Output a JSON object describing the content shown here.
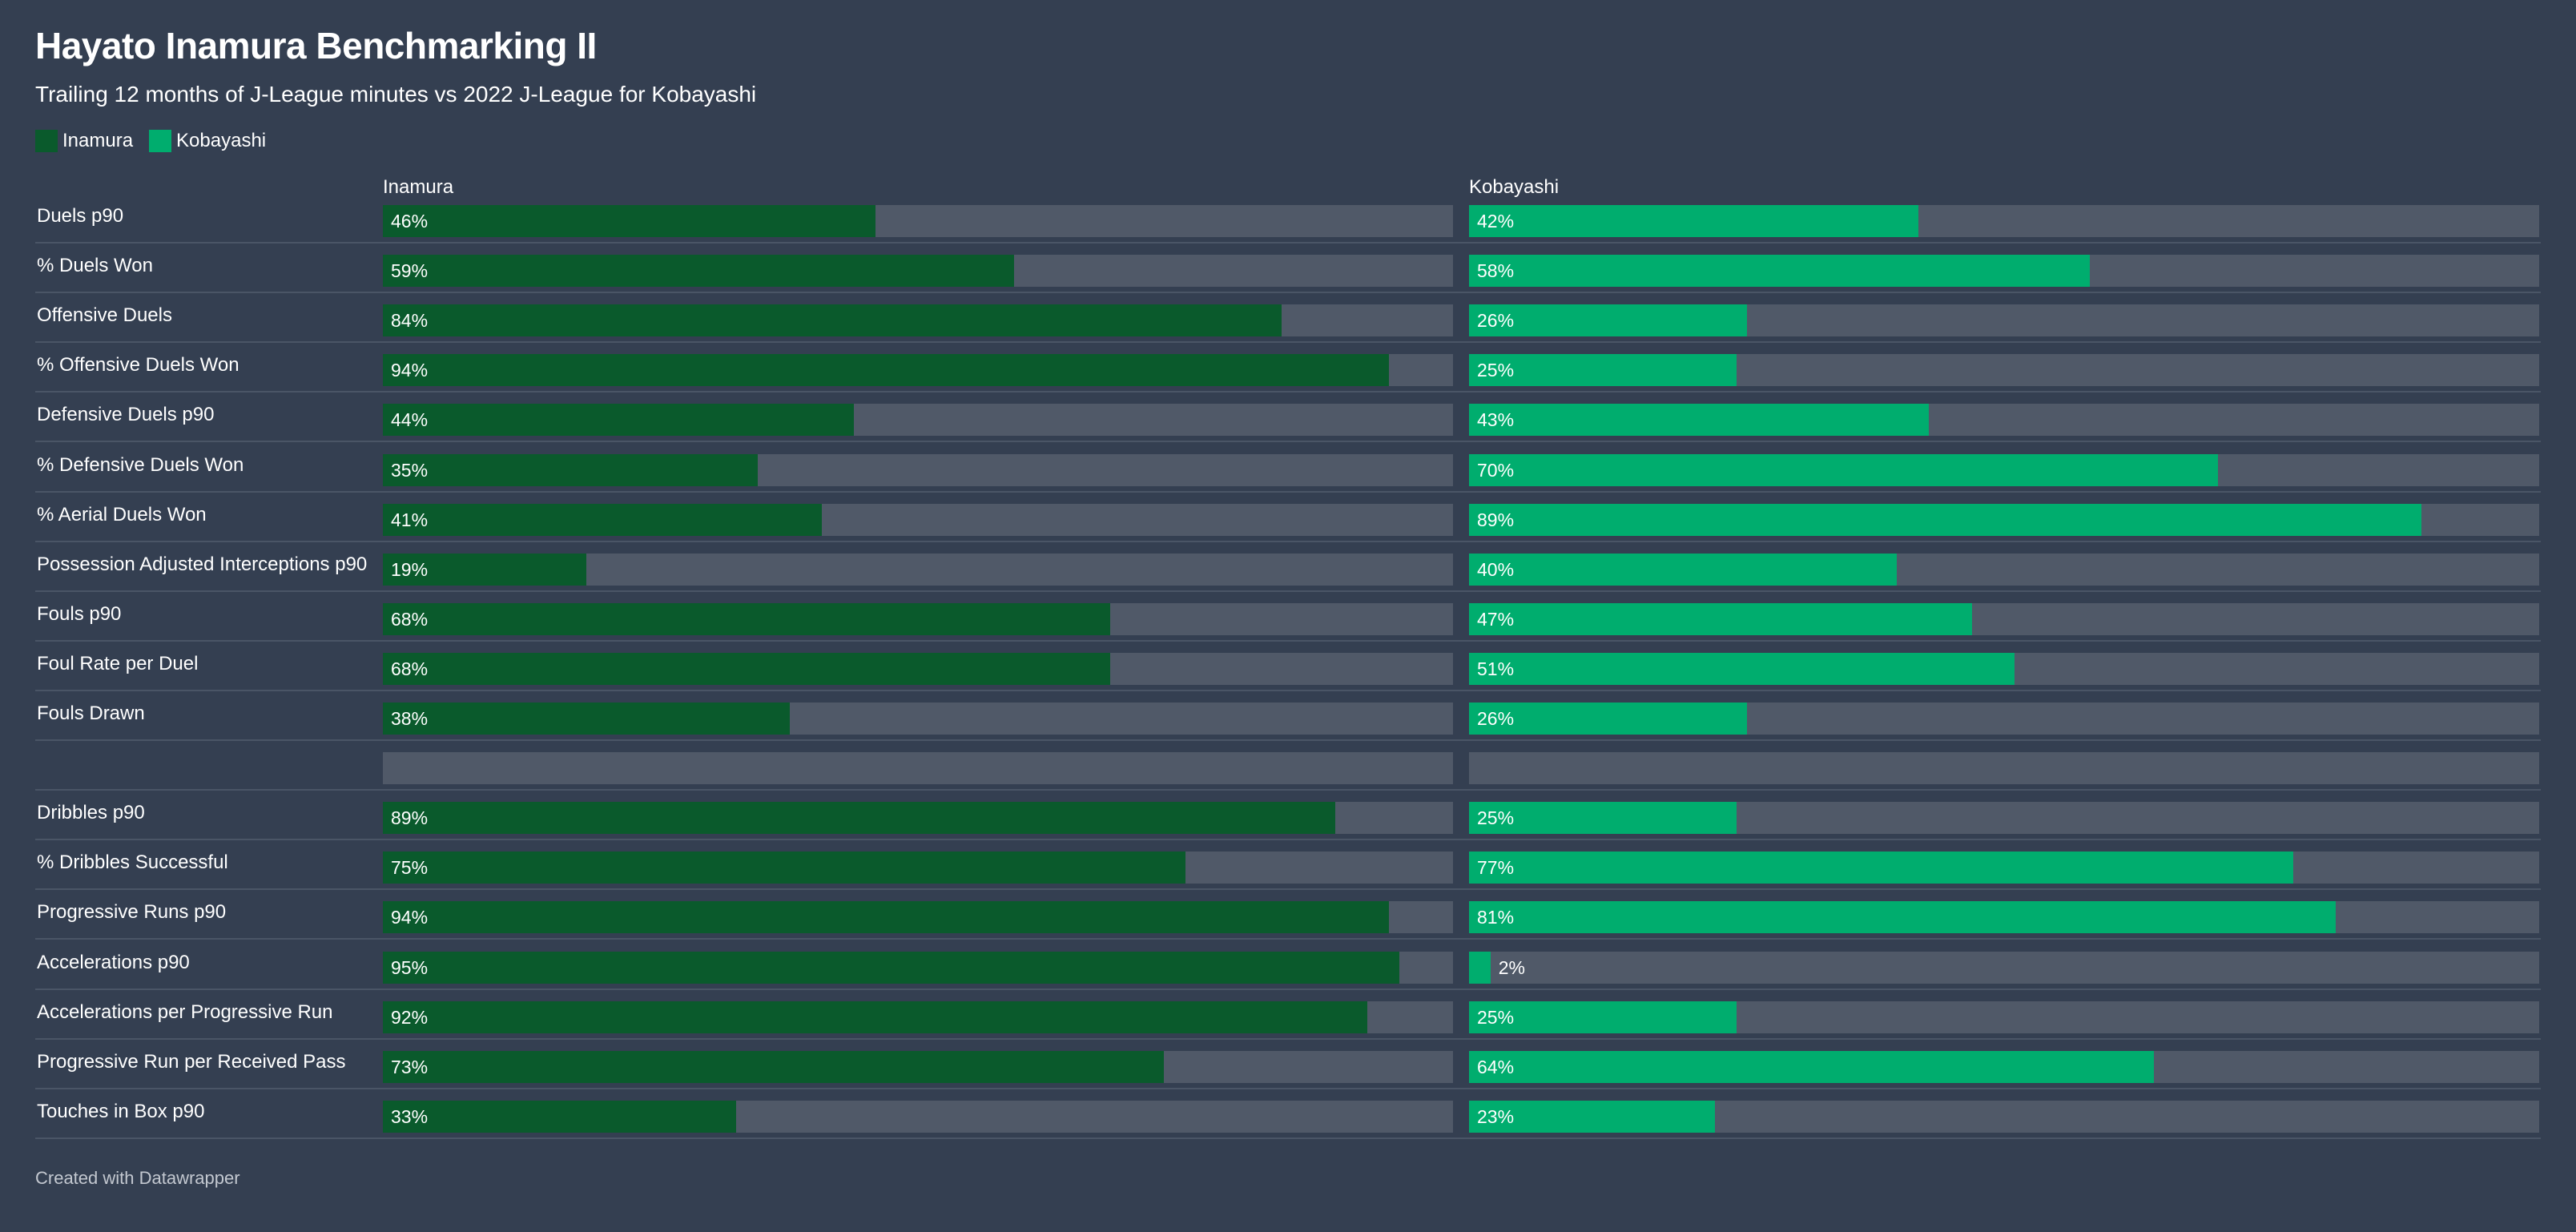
{
  "header": {
    "title": "Hayato Inamura Benchmarking II",
    "subtitle": "Trailing 12 months of J-League minutes vs 2022 J-League for Kobayashi"
  },
  "legend": [
    {
      "label": "Inamura",
      "color": "#0a5a2c"
    },
    {
      "label": "Kobayashi",
      "color": "#00ad6e"
    }
  ],
  "colors": {
    "inamura": "#0a5a2c",
    "kobayashi": "#00ad6e",
    "track": "#505968",
    "background": "#343f51"
  },
  "footer": "Created with Datawrapper",
  "chart_data": {
    "type": "bar",
    "orientation": "horizontal",
    "unit": "%",
    "xlim": [
      0,
      100
    ],
    "series": [
      {
        "name": "Inamura",
        "values": [
          46,
          59,
          84,
          94,
          44,
          35,
          41,
          19,
          68,
          68,
          38,
          null,
          89,
          75,
          94,
          95,
          92,
          73,
          33
        ]
      },
      {
        "name": "Kobayashi",
        "values": [
          42,
          58,
          26,
          25,
          43,
          70,
          89,
          40,
          47,
          51,
          26,
          null,
          25,
          77,
          81,
          2,
          25,
          64,
          23
        ]
      }
    ],
    "categories": [
      "Duels p90",
      "% Duels Won",
      "Offensive Duels",
      "% Offensive Duels Won",
      "Defensive Duels p90",
      "% Defensive Duels Won",
      "% Aerial Duels Won",
      "Possession Adjusted Interceptions p90",
      "Fouls p90",
      "Foul Rate per Duel",
      "Fouls Drawn",
      "",
      "Dribbles p90",
      "% Dribbles Successful",
      "Progressive Runs p90",
      "Accelerations p90",
      "Accelerations per Progressive Run",
      "Progressive Run per Received Pass",
      "Touches in Box p90"
    ]
  }
}
